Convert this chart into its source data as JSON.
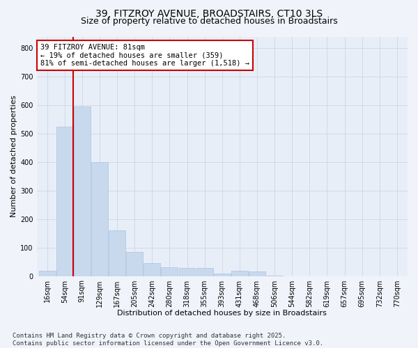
{
  "title_line1": "39, FITZROY AVENUE, BROADSTAIRS, CT10 3LS",
  "title_line2": "Size of property relative to detached houses in Broadstairs",
  "xlabel": "Distribution of detached houses by size in Broadstairs",
  "ylabel": "Number of detached properties",
  "categories": [
    "16sqm",
    "54sqm",
    "91sqm",
    "129sqm",
    "167sqm",
    "205sqm",
    "242sqm",
    "280sqm",
    "318sqm",
    "355sqm",
    "393sqm",
    "431sqm",
    "468sqm",
    "506sqm",
    "544sqm",
    "582sqm",
    "619sqm",
    "657sqm",
    "695sqm",
    "732sqm",
    "770sqm"
  ],
  "values": [
    18,
    525,
    595,
    400,
    160,
    85,
    45,
    30,
    28,
    28,
    8,
    18,
    15,
    2,
    0,
    0,
    0,
    0,
    0,
    0,
    0
  ],
  "bar_color": "#c8d9ee",
  "bar_edge_color": "#a8c4e0",
  "vline_index": 1.5,
  "vline_color": "#cc0000",
  "annotation_text": "39 FITZROY AVENUE: 81sqm\n← 19% of detached houses are smaller (359)\n81% of semi-detached houses are larger (1,518) →",
  "annotation_box_facecolor": "#ffffff",
  "annotation_box_edgecolor": "#cc0000",
  "ylim": [
    0,
    840
  ],
  "yticks": [
    0,
    100,
    200,
    300,
    400,
    500,
    600,
    700,
    800
  ],
  "grid_color": "#cdd5e5",
  "plot_bg_color": "#e8eef8",
  "fig_bg_color": "#f0f4fa",
  "footnote": "Contains HM Land Registry data © Crown copyright and database right 2025.\nContains public sector information licensed under the Open Government Licence v3.0.",
  "title_fontsize": 10,
  "subtitle_fontsize": 9,
  "xlabel_fontsize": 8,
  "ylabel_fontsize": 8,
  "tick_fontsize": 7,
  "annot_fontsize": 7.5,
  "footnote_fontsize": 6.5
}
